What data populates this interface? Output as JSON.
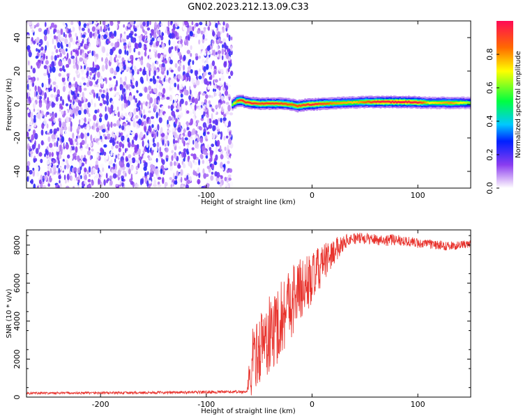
{
  "title": "GN02.2023.212.13.09.C33",
  "chart_data": [
    {
      "type": "heatmap",
      "xlabel": "Height of straight line (km)",
      "ylabel": "Frequency (Hz)",
      "xlim": [
        -270,
        150
      ],
      "ylim": [
        -50,
        50
      ],
      "xticks": [
        -200,
        -100,
        0,
        100
      ],
      "yticks": [
        -40,
        -20,
        0,
        20,
        40
      ],
      "noise_region": {
        "x": [
          -270,
          -76
        ],
        "y": [
          -50,
          50
        ],
        "approx_amplitude": [
          0.0,
          0.25
        ]
      },
      "signal_band": {
        "center_freq": [
          [
            -76,
            0.0
          ],
          [
            -72,
            2.0
          ],
          [
            -68,
            2.5
          ],
          [
            -64,
            1.5
          ],
          [
            -60,
            1.0
          ],
          [
            -50,
            0.5
          ],
          [
            -40,
            0.5
          ],
          [
            -30,
            0.5
          ],
          [
            -20,
            0.0
          ],
          [
            -15,
            -1.0
          ],
          [
            -10,
            -0.5
          ],
          [
            -5,
            0.0
          ],
          [
            0,
            0.0
          ],
          [
            10,
            0.5
          ],
          [
            30,
            1.0
          ],
          [
            50,
            1.5
          ],
          [
            70,
            1.5
          ],
          [
            90,
            1.5
          ],
          [
            110,
            1.0
          ],
          [
            130,
            1.0
          ],
          [
            150,
            1.0
          ]
        ],
        "peak_amplitude": [
          [
            -76,
            0.6
          ],
          [
            -70,
            0.9
          ],
          [
            -60,
            0.95
          ],
          [
            -50,
            0.9
          ],
          [
            -40,
            0.92
          ],
          [
            -30,
            0.9
          ],
          [
            -20,
            0.85
          ],
          [
            -10,
            0.9
          ],
          [
            0,
            0.95
          ],
          [
            20,
            0.8
          ],
          [
            40,
            0.75
          ],
          [
            60,
            0.95
          ],
          [
            80,
            0.98
          ],
          [
            100,
            0.95
          ],
          [
            110,
            0.7
          ],
          [
            120,
            0.75
          ],
          [
            130,
            0.8
          ],
          [
            150,
            0.6
          ]
        ]
      },
      "colorbar": {
        "label": "Normalized spectral amplitude",
        "range": [
          0,
          1
        ],
        "ticks": [
          "0.0",
          "0.2",
          "0.4",
          "0.6",
          "0.8"
        ]
      }
    },
    {
      "type": "line",
      "xlabel": "Height of straight line (km)",
      "ylabel": "SNR (10 * v/v)",
      "xlim": [
        -270,
        150
      ],
      "ylim": [
        0,
        8800
      ],
      "xticks": [
        -200,
        -100,
        0,
        100
      ],
      "yticks": [
        0,
        2000,
        4000,
        6000,
        8000
      ],
      "series": [
        {
          "color": "#e8332d",
          "points": [
            [
              -270,
              200
            ],
            [
              -240,
              210
            ],
            [
              -200,
              220
            ],
            [
              -160,
              230
            ],
            [
              -120,
              250
            ],
            [
              -100,
              260
            ],
            [
              -80,
              270
            ],
            [
              -62,
              280
            ],
            [
              -58,
              1200
            ],
            [
              -55,
              2500
            ],
            [
              -52,
              2200
            ],
            [
              -48,
              2800
            ],
            [
              -44,
              3000
            ],
            [
              -40,
              3200
            ],
            [
              -36,
              3500
            ],
            [
              -32,
              3900
            ],
            [
              -28,
              4300
            ],
            [
              -24,
              4800
            ],
            [
              -20,
              5100
            ],
            [
              -16,
              5300
            ],
            [
              -12,
              5600
            ],
            [
              -8,
              5800
            ],
            [
              -4,
              6000
            ],
            [
              0,
              6200
            ],
            [
              5,
              6600
            ],
            [
              10,
              7000
            ],
            [
              15,
              7300
            ],
            [
              20,
              7600
            ],
            [
              25,
              7900
            ],
            [
              30,
              8150
            ],
            [
              35,
              8300
            ],
            [
              40,
              8350
            ],
            [
              50,
              8350
            ],
            [
              60,
              8300
            ],
            [
              70,
              8250
            ],
            [
              80,
              8300
            ],
            [
              90,
              8200
            ],
            [
              100,
              8100
            ],
            [
              110,
              8050
            ],
            [
              120,
              8000
            ],
            [
              130,
              7950
            ],
            [
              140,
              8000
            ],
            [
              150,
              8050
            ]
          ],
          "noise_amplitude": [
            [
              -270,
              60
            ],
            [
              -62,
              80
            ],
            [
              -58,
              1600
            ],
            [
              -40,
              2200
            ],
            [
              -20,
              2000
            ],
            [
              0,
              1400
            ],
            [
              20,
              700
            ],
            [
              35,
              300
            ],
            [
              80,
              300
            ],
            [
              110,
              250
            ],
            [
              150,
              220
            ]
          ]
        }
      ]
    }
  ]
}
